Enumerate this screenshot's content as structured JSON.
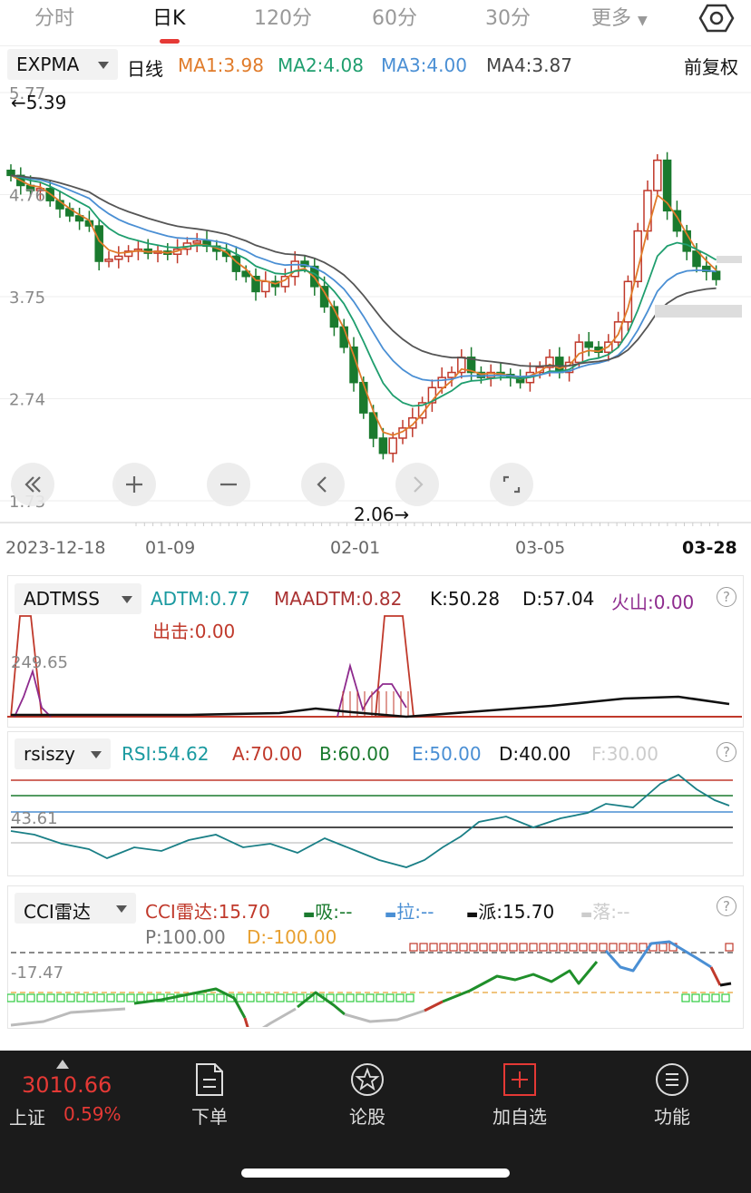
{
  "tabs": [
    "分时",
    "日K",
    "120分",
    "60分",
    "30分",
    "更多"
  ],
  "main": {
    "indicator": "EXPMA",
    "period": "日线",
    "ma1": "MA1:3.98",
    "ma2": "MA2:4.08",
    "ma3": "MA3:4.00",
    "ma4": "MA4:3.87",
    "adjust": "前复权",
    "y_ticks": [
      "5.77",
      "4.76",
      "3.75",
      "2.74",
      "1.73"
    ],
    "high_label": "←5.39",
    "low_label": "2.06→",
    "x_labels": [
      "2023-12-18",
      "01-09",
      "02-01",
      "03-05",
      "03-28"
    ]
  },
  "adtm": {
    "name": "ADTMSS",
    "adtm": "ADTM:0.77",
    "maadtm": "MAADTM:0.82",
    "k": "K:50.28",
    "d": "D:57.04",
    "huoshan": "火山:0.00",
    "chuji": "出击:0.00",
    "axis": "249.65"
  },
  "rsi": {
    "name": "rsiszy",
    "rsi": "RSI:54.62",
    "a": "A:70.00",
    "b": "B:60.00",
    "e": "E:50.00",
    "d": "D:40.00",
    "f": "F:30.00",
    "axis": "43.61"
  },
  "cci": {
    "name": "CCI雷达",
    "val": "CCI雷达:15.70",
    "xi": "吸:--",
    "la": "拉:--",
    "pai": "派:15.70",
    "luo": "落:--",
    "p": "P:100.00",
    "d": "D:-100.00",
    "axis": "-17.47"
  },
  "footer": {
    "index_value": "3010.66",
    "index_name": "上证",
    "index_change": "0.59%",
    "items": [
      "下单",
      "论股",
      "加自选",
      "功能"
    ]
  },
  "colors": {
    "up": "#c0392b",
    "down": "#1a7a2e",
    "ma1": "#e07b2a",
    "ma2": "#1f9e6e",
    "ma3": "#4a8fd4",
    "ma4": "#555555"
  },
  "chart_data": {
    "type": "candlestick",
    "ylim": [
      1.73,
      5.77
    ],
    "close": [
      4.95,
      4.85,
      4.8,
      4.82,
      4.7,
      4.62,
      4.55,
      4.5,
      4.45,
      4.1,
      4.12,
      4.15,
      4.2,
      4.22,
      4.18,
      4.2,
      4.17,
      4.22,
      4.28,
      4.3,
      4.25,
      4.2,
      4.15,
      4.0,
      3.95,
      3.8,
      3.9,
      3.85,
      3.95,
      4.1,
      4.05,
      3.85,
      3.65,
      3.45,
      3.25,
      2.9,
      2.6,
      2.35,
      2.2,
      2.35,
      2.45,
      2.55,
      2.7,
      2.85,
      2.95,
      3.0,
      3.15,
      3.0,
      2.95,
      3.0,
      2.98,
      2.95,
      2.9,
      3.0,
      3.05,
      3.15,
      3.0,
      3.1,
      3.3,
      3.25,
      3.2,
      3.3,
      3.5,
      3.9,
      4.4,
      4.8,
      5.1,
      4.6,
      4.4,
      4.2,
      4.05,
      4.0,
      3.92
    ]
  }
}
